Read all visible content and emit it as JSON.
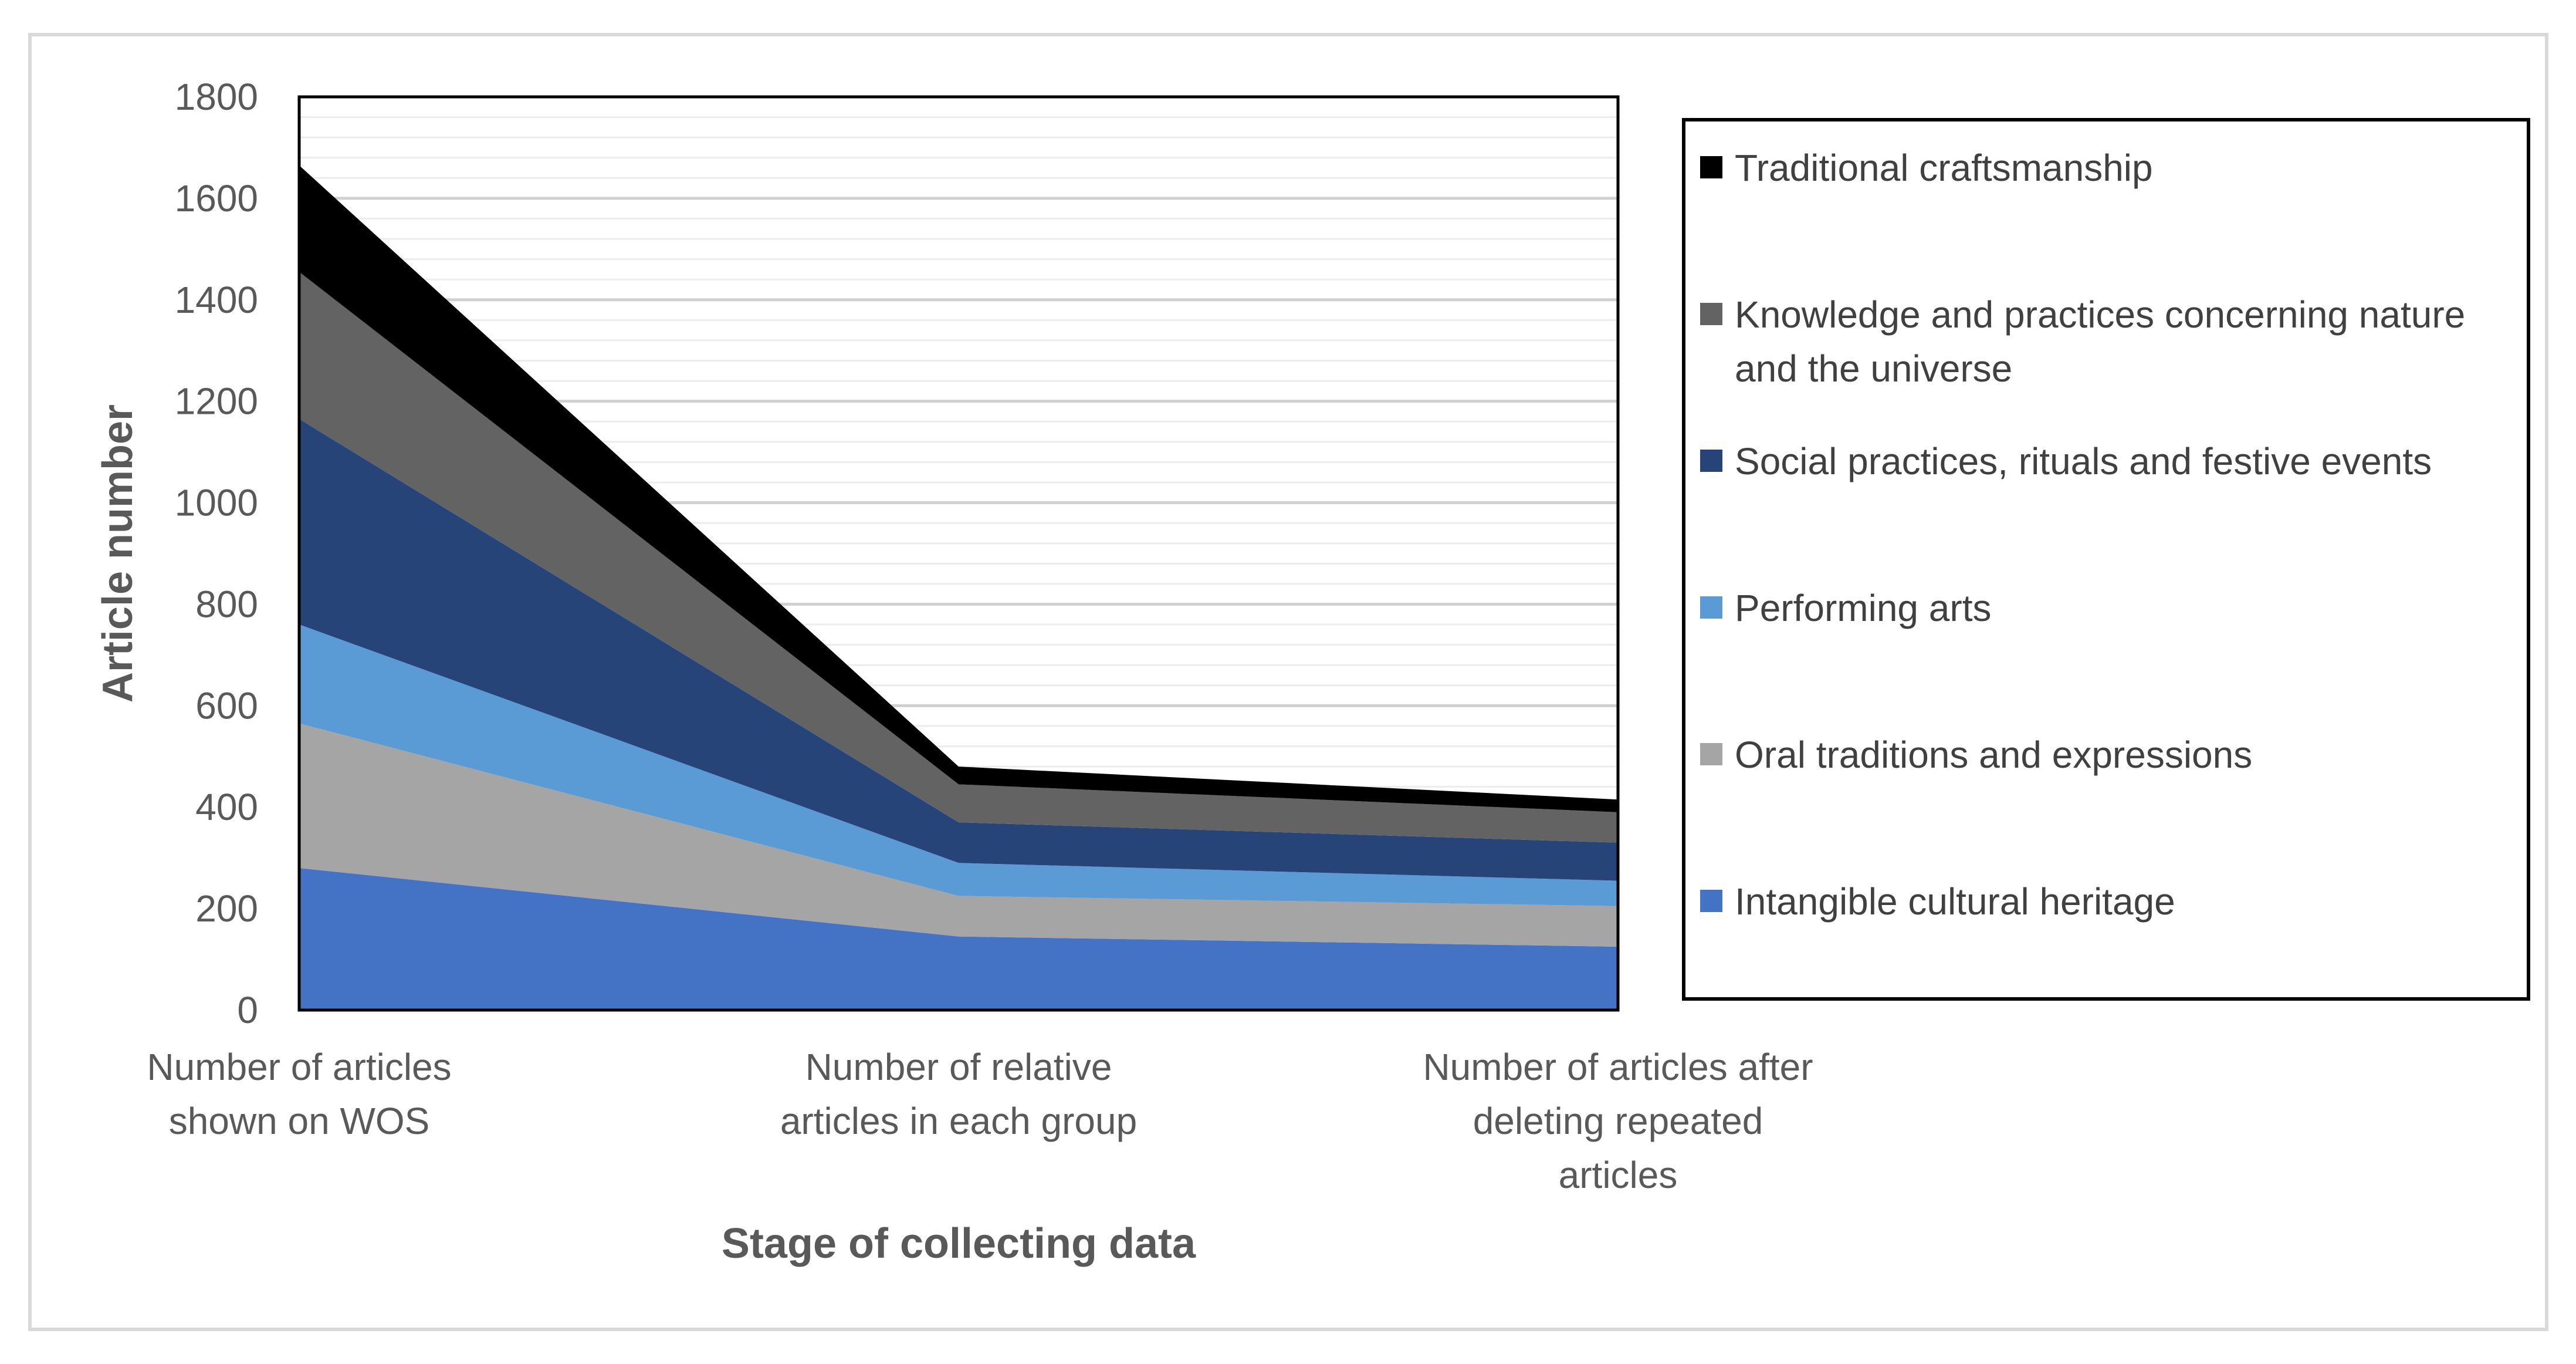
{
  "chart_data": {
    "type": "area",
    "stacked": true,
    "title": "",
    "xlabel": "Stage of collecting data",
    "ylabel": "Article number",
    "ylim": [
      0,
      1800
    ],
    "yticks": [
      0,
      200,
      400,
      600,
      800,
      1000,
      1200,
      1400,
      1600,
      1800
    ],
    "minor_gridlines": true,
    "legend_position": "right",
    "categories": [
      [
        "Number of articles",
        "shown on WOS"
      ],
      [
        "Number of relative",
        "articles in each group"
      ],
      [
        "Number of articles after",
        "deleting repeated",
        "articles"
      ]
    ],
    "series": [
      {
        "name": "Intangible cultural heritage",
        "color": "#4472c4",
        "values": [
          280,
          145,
          125
        ]
      },
      {
        "name": "Oral traditions and expressions",
        "color": "#a5a5a5",
        "values": [
          285,
          80,
          80
        ]
      },
      {
        "name": "Performing arts",
        "color": "#5b9bd5",
        "values": [
          195,
          65,
          50
        ]
      },
      {
        "name": "Social practices, rituals and festive events",
        "color": "#264478",
        "values": [
          405,
          80,
          75
        ]
      },
      {
        "name": "Knowledge and practices concerning nature and the universe",
        "color": "#636363",
        "values": [
          290,
          75,
          60
        ]
      },
      {
        "name": "Traditional craftsmanship",
        "color": "#000000",
        "values": [
          210,
          35,
          25
        ]
      }
    ]
  }
}
